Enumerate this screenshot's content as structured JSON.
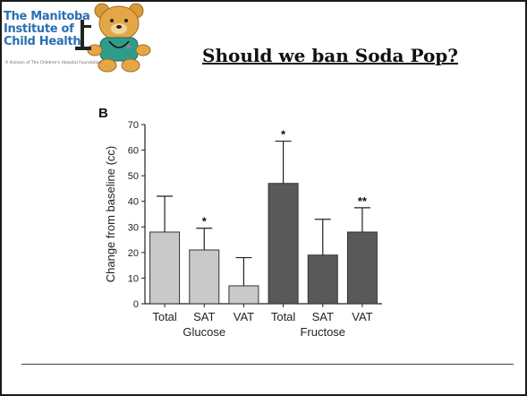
{
  "slide": {
    "title": "Should we ban Soda Pop?"
  },
  "logo": {
    "line1": "The Manitoba",
    "line2": "Institute of",
    "line3": "Child Health",
    "tagline": "A division of The Children's Hospital Foundation"
  },
  "colors": {
    "glucose_bar": "#c9c9c9",
    "fructose_bar": "#595959",
    "title_text": "#111111",
    "logo_blue": "#2a6fb3"
  },
  "chart_data": {
    "type": "bar",
    "panel_label": "B",
    "ylabel": "Change from baseline (cc)",
    "ylim": [
      0,
      70
    ],
    "yticks": [
      0,
      10,
      20,
      30,
      40,
      50,
      60,
      70
    ],
    "categories": [
      "Total",
      "SAT",
      "VAT",
      "Total",
      "SAT",
      "VAT"
    ],
    "groups": [
      {
        "name": "Glucose",
        "indices": [
          0,
          1,
          2
        ]
      },
      {
        "name": "Fructose",
        "indices": [
          3,
          4,
          5
        ]
      }
    ],
    "values": [
      28,
      21,
      7,
      47,
      19,
      28
    ],
    "errors": [
      14,
      8.5,
      11,
      16.5,
      14,
      9.5
    ],
    "significance": [
      "",
      "*",
      "",
      "*",
      "",
      "**"
    ]
  }
}
